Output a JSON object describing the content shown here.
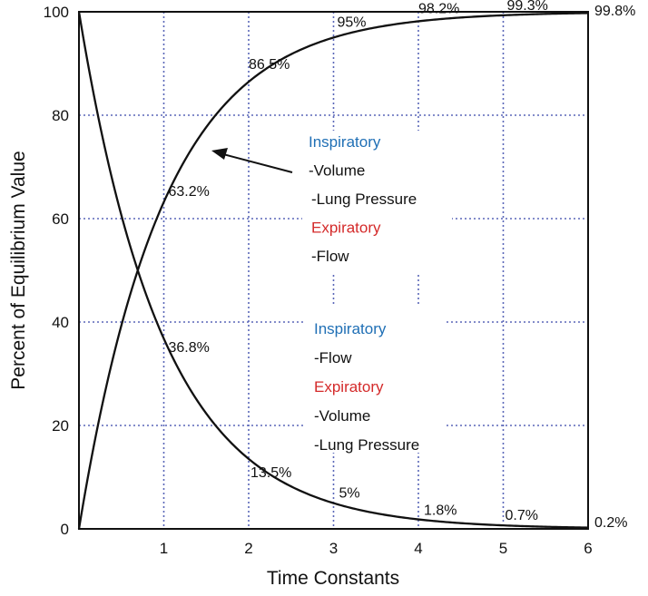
{
  "chart_data": {
    "type": "line",
    "xlabel": "Time Constants",
    "ylabel": "Percent of Equilibrium Value",
    "xlim": [
      0,
      6
    ],
    "ylim": [
      0,
      100
    ],
    "x_ticks": [
      "1",
      "2",
      "3",
      "4",
      "5",
      "6"
    ],
    "y_ticks": [
      "0",
      "20",
      "40",
      "60",
      "80",
      "100"
    ],
    "grid": true,
    "x": [
      0,
      1,
      2,
      3,
      4,
      5,
      6
    ],
    "series": [
      {
        "values": [
          0,
          63.2,
          86.5,
          95,
          98.2,
          99.3,
          99.8
        ],
        "labels": [
          "",
          "63.2%",
          "86.5%",
          "95%",
          "98.2%",
          "99.3%",
          "99.8%"
        ]
      },
      {
        "values": [
          100,
          36.8,
          13.5,
          5,
          1.8,
          0.7,
          0.2
        ],
        "labels": [
          "",
          "36.8%",
          "13.5%",
          "5%",
          "1.8%",
          "0.7%",
          "0.2%"
        ]
      }
    ],
    "annotations": {
      "upper": [
        {
          "text": "Inspiratory",
          "color": "#1f6fb5"
        },
        {
          "text": "-Volume",
          "color": "#111111"
        },
        {
          "text": "-Lung Pressure",
          "color": "#111111"
        },
        {
          "text": "Expiratory",
          "color": "#d42a2a"
        },
        {
          "text": "-Flow",
          "color": "#111111"
        }
      ],
      "lower": [
        {
          "text": "Inspiratory",
          "color": "#1f6fb5"
        },
        {
          "text": "-Flow",
          "color": "#111111"
        },
        {
          "text": "Expiratory",
          "color": "#d42a2a"
        },
        {
          "text": "-Volume",
          "color": "#111111"
        },
        {
          "text": "-Lung Pressure",
          "color": "#111111"
        }
      ]
    }
  }
}
